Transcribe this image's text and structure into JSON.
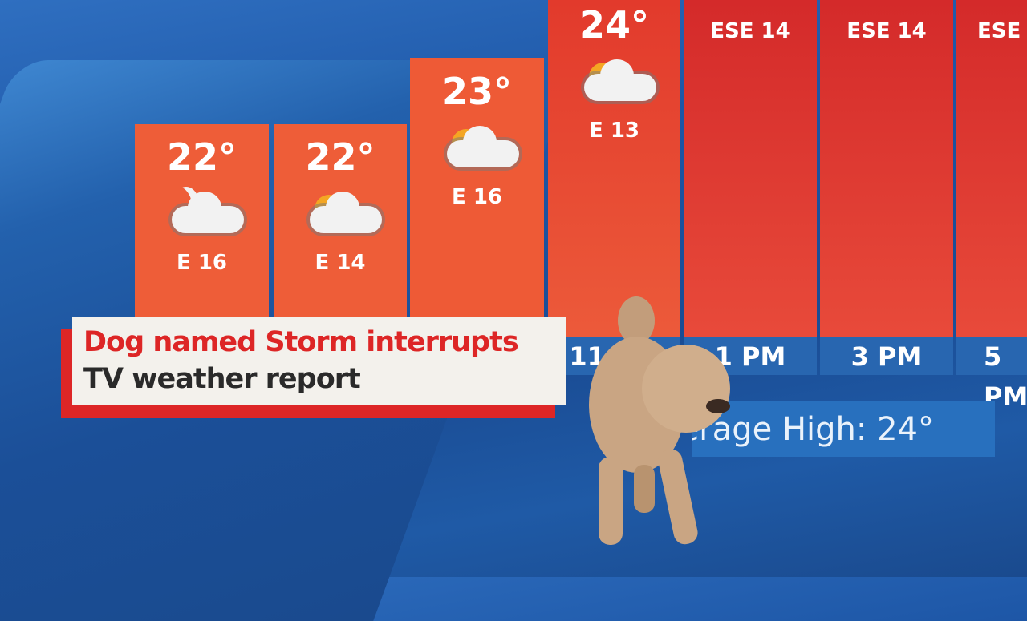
{
  "forecast": [
    {
      "temp": "22°",
      "icon": "moon-cloud-icon",
      "wind": "E 16"
    },
    {
      "temp": "22°",
      "icon": "sun-cloud-icon",
      "wind": "E 14"
    },
    {
      "temp": "23°",
      "icon": "sun-cloud-icon",
      "wind": "E 16"
    },
    {
      "temp": "24°",
      "icon": "sun-cloud-icon",
      "wind": "E 13"
    },
    {
      "temp": "",
      "icon": "",
      "wind": "ESE 14"
    },
    {
      "temp": "",
      "icon": "",
      "wind": "ESE 14"
    },
    {
      "temp": "",
      "icon": "",
      "wind": "ESE"
    }
  ],
  "times": [
    "11 AM",
    "1 PM",
    "3 PM",
    "5 PM"
  ],
  "average_high": "Average High: 24°",
  "caption": {
    "line1": "Dog named Storm interrupts",
    "line2": "TV weather report"
  },
  "colors": {
    "orange": "#ee5a36",
    "red": "#d42a2a",
    "blue": "#1d56a6",
    "caption_red": "#dd2626"
  }
}
